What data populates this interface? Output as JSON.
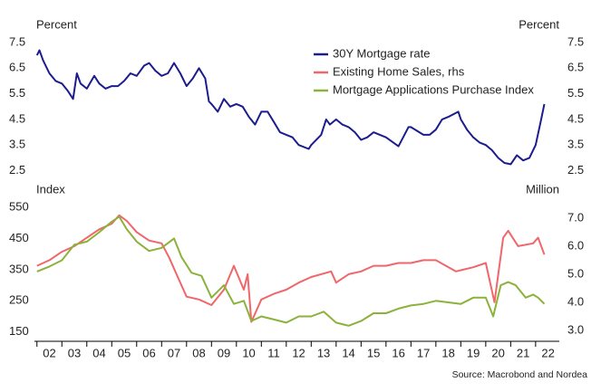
{
  "chart_data": [
    {
      "type": "line",
      "y_label": "Percent",
      "y2_label": "Percent",
      "xlim": [
        2001.9,
        2022.95
      ],
      "ylim": [
        2.2,
        7.8
      ],
      "yticks": [
        2.5,
        3.5,
        4.5,
        5.5,
        6.5,
        7.5
      ],
      "y2lim": [
        2.2,
        7.8
      ],
      "y2ticks": [
        2.5,
        3.5,
        4.5,
        5.5,
        6.5,
        7.5
      ],
      "legend": "top-right",
      "series": [
        {
          "name": "30Y Mortgage rate",
          "color": "#1c1c8e",
          "x": [
            2002.0,
            2002.1,
            2002.25,
            2002.5,
            2002.75,
            2003.0,
            2003.25,
            2003.45,
            2003.6,
            2003.75,
            2004.0,
            2004.3,
            2004.5,
            2004.75,
            2005.0,
            2005.25,
            2005.5,
            2005.75,
            2006.0,
            2006.3,
            2006.5,
            2006.75,
            2007.0,
            2007.25,
            2007.5,
            2007.75,
            2008.0,
            2008.25,
            2008.5,
            2008.75,
            2008.9,
            2009.0,
            2009.25,
            2009.5,
            2009.75,
            2010.0,
            2010.25,
            2010.5,
            2010.75,
            2011.0,
            2011.25,
            2011.5,
            2011.75,
            2012.0,
            2012.25,
            2012.5,
            2012.9,
            2013.0,
            2013.4,
            2013.6,
            2013.75,
            2014.0,
            2014.25,
            2014.5,
            2014.75,
            2015.0,
            2015.25,
            2015.5,
            2015.75,
            2016.0,
            2016.5,
            2016.9,
            2017.0,
            2017.25,
            2017.5,
            2017.75,
            2018.0,
            2018.25,
            2018.5,
            2018.9,
            2019.0,
            2019.25,
            2019.5,
            2019.75,
            2020.0,
            2020.25,
            2020.5,
            2020.75,
            2021.0,
            2021.25,
            2021.5,
            2021.75,
            2022.0,
            2022.2,
            2022.35
          ],
          "values": [
            7.0,
            7.2,
            6.8,
            6.3,
            6.0,
            5.9,
            5.6,
            5.3,
            6.3,
            5.9,
            5.7,
            6.2,
            5.9,
            5.7,
            5.8,
            5.8,
            6.0,
            6.3,
            6.2,
            6.6,
            6.7,
            6.4,
            6.2,
            6.3,
            6.7,
            6.3,
            5.8,
            6.1,
            6.5,
            6.1,
            5.2,
            5.1,
            4.8,
            5.3,
            5.0,
            5.1,
            5.0,
            4.6,
            4.3,
            4.8,
            4.8,
            4.4,
            4.0,
            3.9,
            3.8,
            3.5,
            3.35,
            3.5,
            3.9,
            4.5,
            4.3,
            4.5,
            4.3,
            4.2,
            4.0,
            3.7,
            3.8,
            4.0,
            3.9,
            3.8,
            3.45,
            4.2,
            4.2,
            4.05,
            3.9,
            3.9,
            4.1,
            4.5,
            4.6,
            4.8,
            4.5,
            4.1,
            3.8,
            3.6,
            3.5,
            3.3,
            3.0,
            2.8,
            2.75,
            3.1,
            2.9,
            3.0,
            3.5,
            4.4,
            5.1
          ]
        }
      ]
    },
    {
      "type": "line",
      "y_label": "Index",
      "y2_label": "Million",
      "source": "Source: Macrobond and Nordea",
      "xlim": [
        2001.9,
        2022.95
      ],
      "xticks": [
        {
          "value": 2002,
          "label": "02"
        },
        {
          "value": 2003,
          "label": "03"
        },
        {
          "value": 2004,
          "label": "04"
        },
        {
          "value": 2005,
          "label": "05"
        },
        {
          "value": 2006,
          "label": "06"
        },
        {
          "value": 2007,
          "label": "07"
        },
        {
          "value": 2008,
          "label": "08"
        },
        {
          "value": 2009,
          "label": "09"
        },
        {
          "value": 2010,
          "label": "10"
        },
        {
          "value": 2011,
          "label": "11"
        },
        {
          "value": 2012,
          "label": "12"
        },
        {
          "value": 2013,
          "label": "13"
        },
        {
          "value": 2014,
          "label": "14"
        },
        {
          "value": 2015,
          "label": "15"
        },
        {
          "value": 2016,
          "label": "16"
        },
        {
          "value": 2017,
          "label": "17"
        },
        {
          "value": 2018,
          "label": "18"
        },
        {
          "value": 2019,
          "label": "19"
        },
        {
          "value": 2020,
          "label": "20"
        },
        {
          "value": 2021,
          "label": "21"
        },
        {
          "value": 2022,
          "label": "22"
        }
      ],
      "ylim": [
        120,
        582
      ],
      "yticks": [
        150,
        250,
        350,
        450,
        550
      ],
      "y2lim": [
        2.61,
        7.74
      ],
      "y2ticks": [
        {
          "value": 3,
          "label": "3.0"
        },
        {
          "value": 4,
          "label": "4.0"
        },
        {
          "value": 5,
          "label": "5.0"
        },
        {
          "value": 6,
          "label": "6.0"
        },
        {
          "value": 7,
          "label": "7.0"
        }
      ],
      "series": [
        {
          "name": "Existing Home Sales, rhs",
          "color": "#f0666a",
          "axis": "y2",
          "x": [
            2002.0,
            2002.5,
            2003.0,
            2003.5,
            2004.0,
            2004.5,
            2005.0,
            2005.3,
            2005.6,
            2006.0,
            2006.5,
            2007.0,
            2007.3,
            2007.7,
            2008.0,
            2008.5,
            2009.0,
            2009.5,
            2009.9,
            2010.3,
            2010.45,
            2010.6,
            2011.0,
            2011.5,
            2012.0,
            2012.5,
            2013.0,
            2013.8,
            2014.0,
            2014.5,
            2015.0,
            2015.5,
            2016.0,
            2016.5,
            2017.0,
            2017.5,
            2018.0,
            2018.8,
            2019.5,
            2020.0,
            2020.35,
            2020.7,
            2020.9,
            2021.3,
            2021.9,
            2022.1,
            2022.35
          ],
          "values": [
            5.3,
            5.5,
            5.8,
            6.0,
            6.3,
            6.6,
            6.8,
            7.1,
            6.9,
            6.5,
            6.2,
            6.1,
            5.6,
            4.8,
            4.2,
            4.1,
            3.9,
            4.45,
            5.3,
            4.45,
            5.0,
            3.3,
            4.1,
            4.3,
            4.45,
            4.7,
            4.9,
            5.1,
            4.7,
            5.0,
            5.1,
            5.3,
            5.3,
            5.4,
            5.4,
            5.5,
            5.5,
            5.1,
            5.25,
            5.4,
            4.0,
            6.3,
            6.55,
            6.0,
            6.1,
            6.3,
            5.7
          ]
        },
        {
          "name": "Mortgage Applications Purchase Index",
          "color": "#8cb23c",
          "x": [
            2002.0,
            2002.5,
            2003.0,
            2003.5,
            2004.0,
            2004.5,
            2005.0,
            2005.3,
            2005.6,
            2006.0,
            2006.5,
            2007.0,
            2007.5,
            2007.8,
            2008.2,
            2008.6,
            2009.0,
            2009.5,
            2009.9,
            2010.3,
            2010.6,
            2011.0,
            2011.5,
            2012.0,
            2012.5,
            2013.0,
            2013.5,
            2014.0,
            2014.5,
            2015.0,
            2015.5,
            2016.0,
            2016.5,
            2017.0,
            2017.5,
            2018.0,
            2018.5,
            2019.0,
            2019.5,
            2020.0,
            2020.3,
            2020.6,
            2020.9,
            2021.2,
            2021.6,
            2021.9,
            2022.1,
            2022.35
          ],
          "values": [
            344,
            360,
            380,
            430,
            440,
            470,
            504,
            520,
            480,
            440,
            410,
            420,
            450,
            390,
            340,
            330,
            260,
            300,
            240,
            250,
            185,
            200,
            190,
            180,
            200,
            200,
            215,
            180,
            170,
            185,
            210,
            210,
            225,
            235,
            240,
            250,
            245,
            240,
            260,
            260,
            200,
            300,
            310,
            300,
            260,
            270,
            260,
            240
          ]
        }
      ]
    }
  ]
}
